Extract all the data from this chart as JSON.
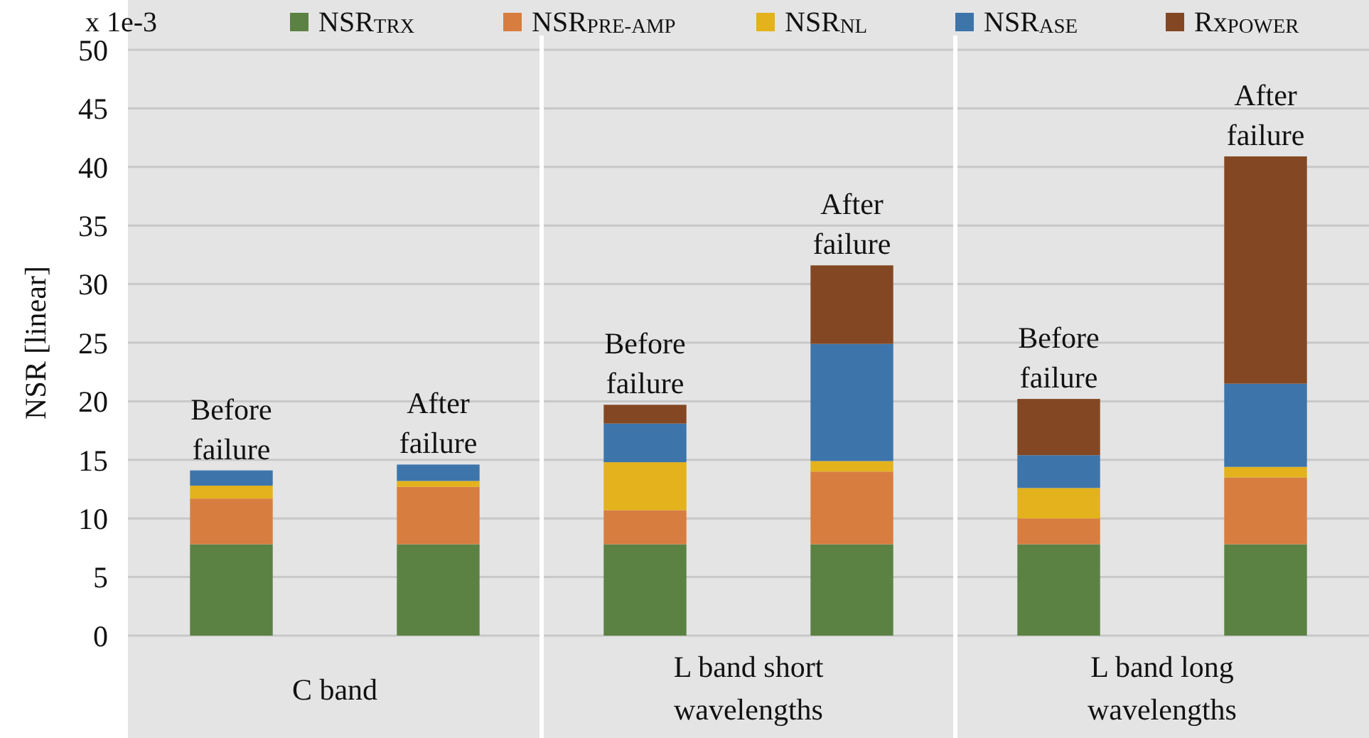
{
  "chart_data": {
    "type": "bar",
    "stacked": true,
    "ylabel": "NSR [linear]",
    "categories": [
      "Before failure",
      "After failure",
      "Before failure",
      "After failure",
      "Before failure",
      "After failure"
    ],
    "series": [
      {
        "name": "NSR$_{TRX}$",
        "color": "#5b8243",
        "values": [
          7.8,
          7.8,
          7.8,
          7.8,
          7.8,
          7.8
        ]
      },
      {
        "name": "NSR$_{PRE-AMP}$",
        "color": "#d87d40",
        "values": [
          3.9,
          4.9,
          2.9,
          6.2,
          2.2,
          5.7
        ]
      },
      {
        "name": "NSR$_{NL}$",
        "color": "#e3b21c",
        "values": [
          1.1,
          0.5,
          4.1,
          0.9,
          2.6,
          0.9
        ]
      },
      {
        "name": "NSR$_{ASE}$",
        "color": "#3d75ab",
        "values": [
          1.3,
          1.4,
          3.3,
          10.0,
          2.8,
          7.1
        ]
      },
      {
        "name": "Rx$_{POWER}$",
        "color": "#834823",
        "values": [
          0,
          0,
          1.6,
          6.7,
          4.8,
          19.4
        ]
      }
    ],
    "ylim": [
      0,
      50
    ],
    "yticks": [
      0,
      5,
      10,
      15,
      20,
      25,
      30,
      35,
      40,
      45,
      50
    ],
    "grid": "y",
    "legend": "top right",
    "annotations": [
      "x 1e-3",
      "C band",
      "L band short wavelengths",
      "L band long wavelengths"
    ]
  }
}
